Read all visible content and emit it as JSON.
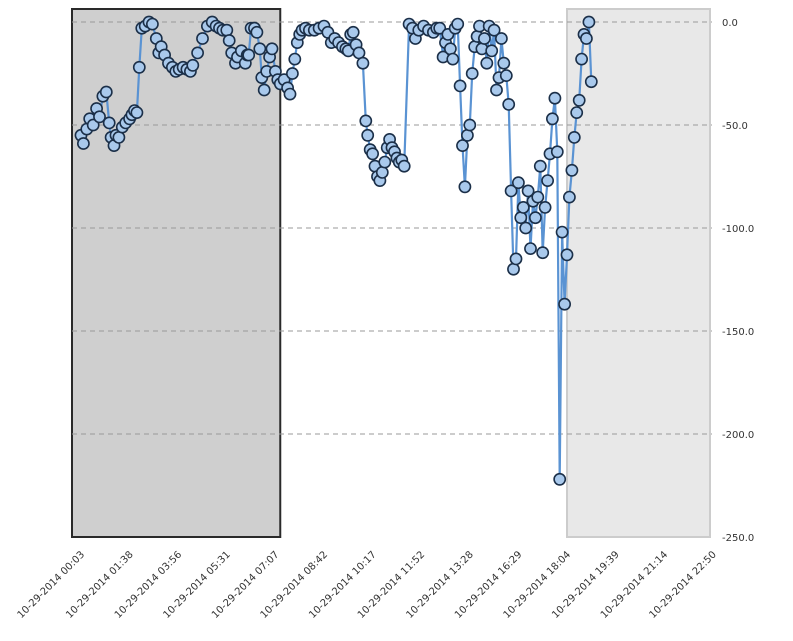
{
  "chart_data": {
    "type": "line",
    "title": "",
    "xlabel": "",
    "ylabel": "",
    "x_ticks": [
      "10-29-2014 00:03",
      "10-29-2014 01:38",
      "10-29-2014 03:56",
      "10-29-2014 05:31",
      "10-29-2014 07:07",
      "10-29-2014 08:42",
      "10-29-2014 10:17",
      "10-29-2014 11:52",
      "10-29-2014 13:28",
      "10-29-2014 16:29",
      "10-29-2014 18:04",
      "10-29-2014 19:39",
      "10-29-2014 21:14",
      "10-29-2014 22:50"
    ],
    "y_ticks": [
      "0.0",
      "-50.0",
      "-100.0",
      "-150.0",
      "-200.0",
      "-250.0"
    ],
    "y_axis_position": "right",
    "ylim": [
      -250,
      0
    ],
    "grid": true,
    "legend": "none",
    "highlight_regions": [
      {
        "start_index": 0,
        "end_index": 4.1,
        "fill": "#cfcfcf",
        "border": "#2a2a2a"
      },
      {
        "start_index": 10,
        "end_index": 13.9,
        "fill": "#e8e8e8",
        "border": "#cccccc"
      }
    ],
    "series": [
      {
        "color": "#5a93d3",
        "marker_fill": "#a9c9ec",
        "marker_edge": "#1b2f48",
        "points": [
          [
            0.0,
            -55
          ],
          [
            0.05,
            -59
          ],
          [
            0.12,
            -52
          ],
          [
            0.18,
            -47
          ],
          [
            0.25,
            -50
          ],
          [
            0.32,
            -42
          ],
          [
            0.38,
            -46
          ],
          [
            0.45,
            -36
          ],
          [
            0.52,
            -34
          ],
          [
            0.58,
            -49
          ],
          [
            0.62,
            -56
          ],
          [
            0.68,
            -60
          ],
          [
            0.72,
            -55
          ],
          [
            0.78,
            -56
          ],
          [
            0.85,
            -51
          ],
          [
            0.92,
            -49
          ],
          [
            1.0,
            -47
          ],
          [
            1.05,
            -45
          ],
          [
            1.1,
            -43
          ],
          [
            1.15,
            -44
          ],
          [
            1.2,
            -22
          ],
          [
            1.25,
            -3
          ],
          [
            1.32,
            -2
          ],
          [
            1.4,
            0
          ],
          [
            1.47,
            -1
          ],
          [
            1.55,
            -8
          ],
          [
            1.6,
            -15
          ],
          [
            1.65,
            -12
          ],
          [
            1.72,
            -16
          ],
          [
            1.8,
            -20
          ],
          [
            1.88,
            -22
          ],
          [
            1.95,
            -24
          ],
          [
            2.02,
            -23
          ],
          [
            2.1,
            -22
          ],
          [
            2.18,
            -23
          ],
          [
            2.25,
            -24
          ],
          [
            2.3,
            -21
          ],
          [
            2.4,
            -15
          ],
          [
            2.5,
            -8
          ],
          [
            2.6,
            -2
          ],
          [
            2.7,
            0
          ],
          [
            2.78,
            -2
          ],
          [
            2.85,
            -3
          ],
          [
            2.92,
            -4
          ],
          [
            3.0,
            -4
          ],
          [
            3.05,
            -9
          ],
          [
            3.1,
            -15
          ],
          [
            3.18,
            -20
          ],
          [
            3.22,
            -17
          ],
          [
            3.3,
            -14
          ],
          [
            3.38,
            -20
          ],
          [
            3.42,
            -16
          ],
          [
            3.45,
            -16
          ],
          [
            3.5,
            -3
          ],
          [
            3.57,
            -3
          ],
          [
            3.62,
            -5
          ],
          [
            3.68,
            -13
          ],
          [
            3.72,
            -27
          ],
          [
            3.77,
            -33
          ],
          [
            3.82,
            -24
          ],
          [
            3.88,
            -17
          ],
          [
            3.93,
            -13
          ],
          [
            4.0,
            -24
          ],
          [
            4.05,
            -28
          ],
          [
            4.1,
            -30
          ],
          [
            4.18,
            -28
          ],
          [
            4.25,
            -32
          ],
          [
            4.3,
            -35
          ],
          [
            4.35,
            -25
          ],
          [
            4.4,
            -18
          ],
          [
            4.45,
            -10
          ],
          [
            4.5,
            -6
          ],
          [
            4.55,
            -4
          ],
          [
            4.62,
            -3
          ],
          [
            4.7,
            -4
          ],
          [
            4.8,
            -4
          ],
          [
            4.9,
            -3
          ],
          [
            5.0,
            -2
          ],
          [
            5.08,
            -5
          ],
          [
            5.15,
            -10
          ],
          [
            5.22,
            -8
          ],
          [
            5.3,
            -10
          ],
          [
            5.38,
            -12
          ],
          [
            5.45,
            -13
          ],
          [
            5.5,
            -14
          ],
          [
            5.55,
            -6
          ],
          [
            5.6,
            -5
          ],
          [
            5.66,
            -11
          ],
          [
            5.72,
            -15
          ],
          [
            5.8,
            -20
          ],
          [
            5.86,
            -48
          ],
          [
            5.9,
            -55
          ],
          [
            5.95,
            -62
          ],
          [
            6.0,
            -64
          ],
          [
            6.05,
            -70
          ],
          [
            6.1,
            -75
          ],
          [
            6.15,
            -77
          ],
          [
            6.2,
            -73
          ],
          [
            6.25,
            -68
          ],
          [
            6.3,
            -61
          ],
          [
            6.35,
            -57
          ],
          [
            6.4,
            -61
          ],
          [
            6.45,
            -63
          ],
          [
            6.5,
            -66
          ],
          [
            6.55,
            -68
          ],
          [
            6.6,
            -67
          ],
          [
            6.65,
            -70
          ],
          [
            6.75,
            -1
          ],
          [
            6.82,
            -3
          ],
          [
            6.88,
            -8
          ],
          [
            6.95,
            -4
          ],
          [
            7.05,
            -2
          ],
          [
            7.15,
            -4
          ],
          [
            7.25,
            -5
          ],
          [
            7.32,
            -3
          ],
          [
            7.38,
            -3
          ],
          [
            7.45,
            -17
          ],
          [
            7.5,
            -10
          ],
          [
            7.55,
            -6
          ],
          [
            7.6,
            -13
          ],
          [
            7.65,
            -18
          ],
          [
            7.7,
            -3
          ],
          [
            7.75,
            -1
          ],
          [
            7.8,
            -31
          ],
          [
            7.85,
            -60
          ],
          [
            7.9,
            -80
          ],
          [
            7.95,
            -55
          ],
          [
            8.0,
            -50
          ],
          [
            8.05,
            -25
          ],
          [
            8.1,
            -12
          ],
          [
            8.15,
            -7
          ],
          [
            8.2,
            -2
          ],
          [
            8.25,
            -13
          ],
          [
            8.3,
            -8
          ],
          [
            8.35,
            -20
          ],
          [
            8.4,
            -2
          ],
          [
            8.45,
            -14
          ],
          [
            8.5,
            -4
          ],
          [
            8.55,
            -33
          ],
          [
            8.6,
            -27
          ],
          [
            8.65,
            -8
          ],
          [
            8.7,
            -20
          ],
          [
            8.75,
            -26
          ],
          [
            8.8,
            -40
          ],
          [
            8.85,
            -82
          ],
          [
            8.9,
            -120
          ],
          [
            8.95,
            -115
          ],
          [
            9.0,
            -78
          ],
          [
            9.05,
            -95
          ],
          [
            9.1,
            -90
          ],
          [
            9.15,
            -100
          ],
          [
            9.2,
            -82
          ],
          [
            9.25,
            -110
          ],
          [
            9.3,
            -87
          ],
          [
            9.35,
            -95
          ],
          [
            9.4,
            -85
          ],
          [
            9.45,
            -70
          ],
          [
            9.5,
            -112
          ],
          [
            9.55,
            -90
          ],
          [
            9.6,
            -77
          ],
          [
            9.65,
            -64
          ],
          [
            9.7,
            -47
          ],
          [
            9.75,
            -37
          ],
          [
            9.8,
            -63
          ],
          [
            9.85,
            -222
          ],
          [
            9.9,
            -102
          ],
          [
            9.95,
            -137
          ],
          [
            10.0,
            -113
          ],
          [
            10.05,
            -85
          ],
          [
            10.1,
            -72
          ],
          [
            10.15,
            -56
          ],
          [
            10.2,
            -44
          ],
          [
            10.25,
            -38
          ],
          [
            10.3,
            -18
          ],
          [
            10.35,
            -6
          ],
          [
            10.4,
            -8
          ],
          [
            10.45,
            0
          ],
          [
            10.5,
            -29
          ]
        ]
      }
    ]
  }
}
